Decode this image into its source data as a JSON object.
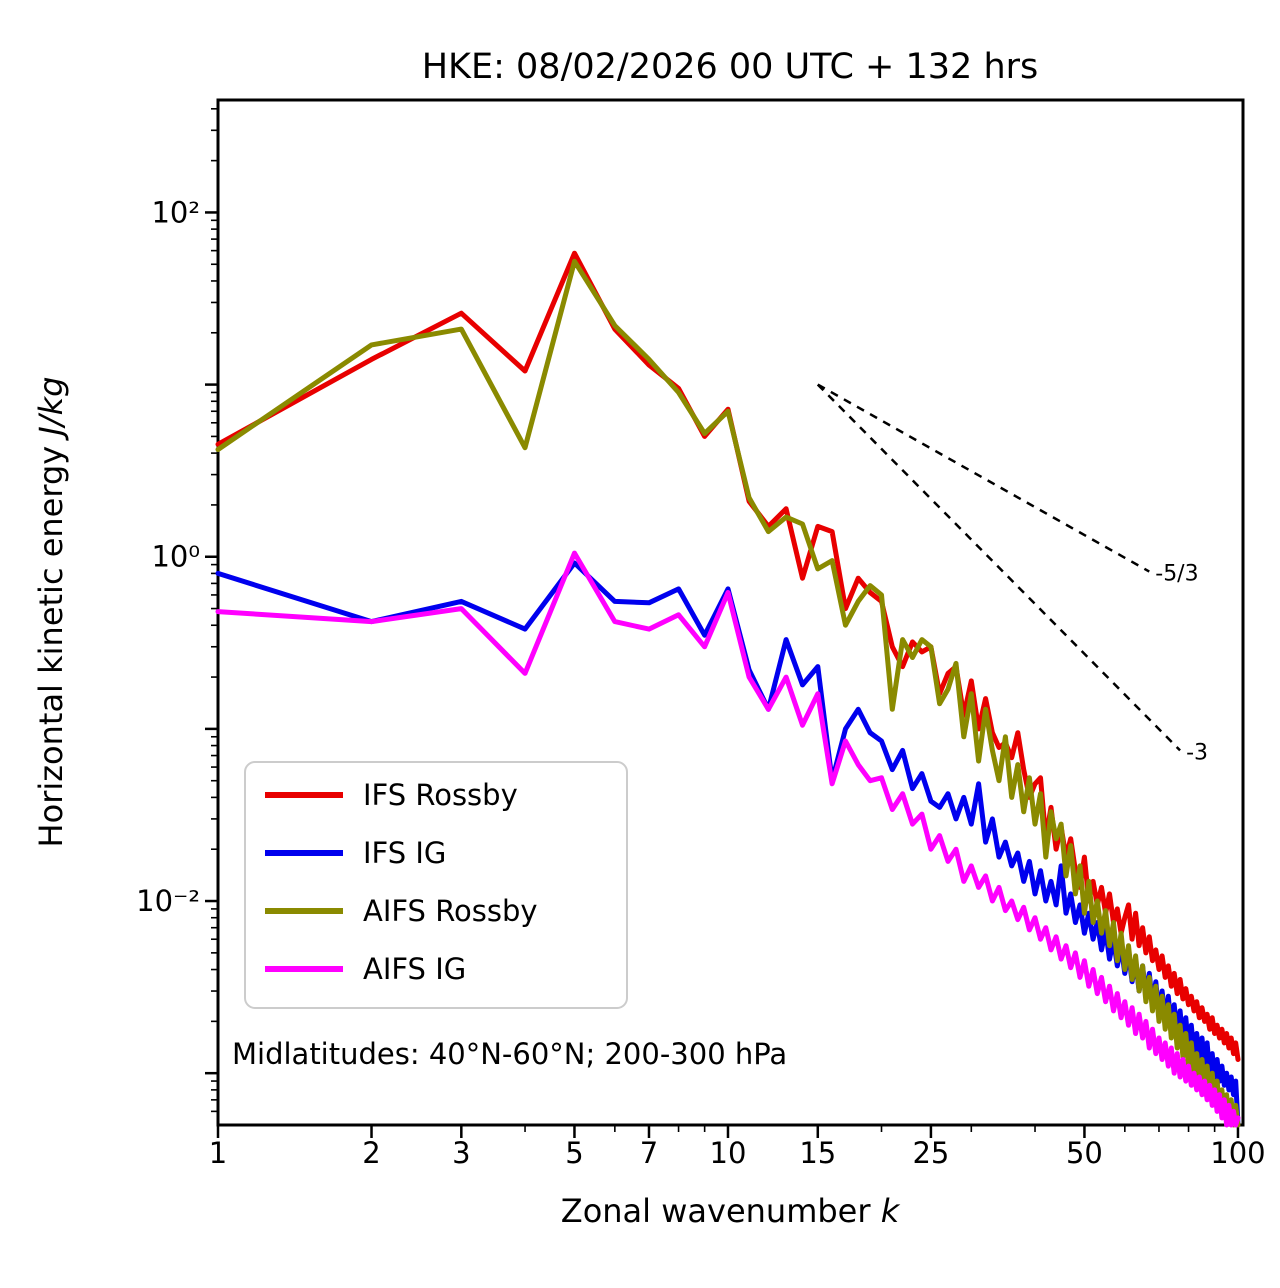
{
  "chart_data": {
    "type": "line",
    "title": "HKE: 08/02/2026 00 UTC + 132 hrs",
    "xlabel_prefix": "Zonal wavenumber ",
    "xlabel_italic": "k",
    "ylabel_prefix": "Horizontal kinetic energy ",
    "ylabel_italic": "J/kg",
    "annotation": "Midlatitudes: 40°N-60°N; 200-300 hPa",
    "x_scale": "log",
    "y_scale": "log",
    "xlim": [
      1,
      102.3
    ],
    "ylim": [
      0.0005,
      450
    ],
    "grid": false,
    "legend_position": "lower left",
    "xtick_values": [
      1,
      2,
      3,
      5,
      7,
      10,
      15,
      25,
      50,
      100
    ],
    "xtick_labels": [
      "1",
      "2",
      "3",
      "5",
      "7",
      "10",
      "15",
      "25",
      "50",
      "100"
    ],
    "ytick_values": [
      0.01,
      1,
      100
    ],
    "ytick_labels": [
      "10⁻²",
      "10⁰",
      "10²"
    ],
    "x": [
      1,
      2,
      3,
      4,
      5,
      6,
      7,
      8,
      9,
      10,
      11,
      12,
      13,
      14,
      15,
      16,
      17,
      18,
      19,
      20,
      21,
      22,
      23,
      24,
      25,
      26,
      27,
      28,
      29,
      30,
      31,
      32,
      33,
      34,
      35,
      36,
      37,
      38,
      39,
      40,
      41,
      42,
      43,
      44,
      45,
      46,
      47,
      48,
      49,
      50,
      51,
      52,
      53,
      54,
      55,
      56,
      57,
      58,
      59,
      60,
      61,
      62,
      63,
      64,
      65,
      66,
      67,
      68,
      69,
      70,
      71,
      72,
      73,
      74,
      75,
      76,
      77,
      78,
      79,
      80,
      81,
      82,
      83,
      84,
      85,
      86,
      87,
      88,
      89,
      90,
      91,
      92,
      93,
      94,
      95,
      96,
      97,
      98,
      99,
      100
    ],
    "series": [
      {
        "name": "IFS Rossby",
        "color": "#e80000",
        "values": [
          4.5,
          14,
          26,
          12,
          58,
          21,
          13,
          9.5,
          5.0,
          7.2,
          2.1,
          1.5,
          1.9,
          0.75,
          1.5,
          1.4,
          0.5,
          0.75,
          0.62,
          0.55,
          0.3,
          0.23,
          0.32,
          0.28,
          0.3,
          0.16,
          0.21,
          0.23,
          0.12,
          0.19,
          0.1,
          0.15,
          0.095,
          0.078,
          0.083,
          0.068,
          0.095,
          0.058,
          0.04,
          0.048,
          0.052,
          0.023,
          0.035,
          0.02,
          0.027,
          0.018,
          0.023,
          0.015,
          0.012,
          0.018,
          0.01,
          0.013,
          0.0095,
          0.012,
          0.0085,
          0.011,
          0.0075,
          0.009,
          0.0065,
          0.008,
          0.0095,
          0.006,
          0.0085,
          0.0055,
          0.007,
          0.005,
          0.0062,
          0.0045,
          0.0052,
          0.004,
          0.0048,
          0.0036,
          0.0042,
          0.0032,
          0.0038,
          0.0029,
          0.0035,
          0.0027,
          0.0031,
          0.0025,
          0.0028,
          0.0023,
          0.0026,
          0.0021,
          0.0024,
          0.002,
          0.0022,
          0.0018,
          0.0021,
          0.0017,
          0.0019,
          0.0016,
          0.0018,
          0.0015,
          0.0017,
          0.0014,
          0.0016,
          0.0013,
          0.0015,
          0.0012
        ]
      },
      {
        "name": "IFS IG",
        "color": "#0000ee",
        "values": [
          0.8,
          0.42,
          0.55,
          0.38,
          0.92,
          0.55,
          0.54,
          0.65,
          0.35,
          0.65,
          0.22,
          0.13,
          0.33,
          0.18,
          0.23,
          0.05,
          0.1,
          0.13,
          0.095,
          0.085,
          0.058,
          0.075,
          0.045,
          0.055,
          0.038,
          0.035,
          0.042,
          0.03,
          0.04,
          0.028,
          0.048,
          0.022,
          0.03,
          0.018,
          0.022,
          0.016,
          0.019,
          0.013,
          0.017,
          0.011,
          0.015,
          0.01,
          0.013,
          0.0095,
          0.016,
          0.0085,
          0.011,
          0.0075,
          0.0095,
          0.0065,
          0.0085,
          0.006,
          0.0075,
          0.0052,
          0.0068,
          0.0046,
          0.006,
          0.0042,
          0.0055,
          0.0038,
          0.005,
          0.0034,
          0.0045,
          0.003,
          0.0042,
          0.0028,
          0.0038,
          0.0025,
          0.0034,
          0.0022,
          0.003,
          0.002,
          0.0028,
          0.0018,
          0.0025,
          0.0017,
          0.0023,
          0.0015,
          0.0021,
          0.0014,
          0.0019,
          0.0013,
          0.0017,
          0.0012,
          0.0016,
          0.0011,
          0.0015,
          0.001,
          0.0013,
          0.00095,
          0.0012,
          0.0009,
          0.0011,
          0.00085,
          0.001,
          0.0008,
          0.00095,
          0.00075,
          0.0009,
          0.0004
        ]
      },
      {
        "name": "AIFS Rossby",
        "color": "#8a8a00",
        "values": [
          4.2,
          17,
          21,
          4.3,
          52,
          22,
          14,
          9.0,
          5.2,
          7.0,
          2.2,
          1.4,
          1.7,
          1.55,
          0.85,
          0.95,
          0.4,
          0.55,
          0.68,
          0.6,
          0.13,
          0.33,
          0.26,
          0.33,
          0.3,
          0.14,
          0.17,
          0.24,
          0.09,
          0.16,
          0.065,
          0.13,
          0.075,
          0.05,
          0.09,
          0.04,
          0.062,
          0.033,
          0.052,
          0.028,
          0.042,
          0.018,
          0.033,
          0.023,
          0.028,
          0.014,
          0.021,
          0.011,
          0.016,
          0.0085,
          0.013,
          0.0075,
          0.01,
          0.0065,
          0.0088,
          0.0055,
          0.0075,
          0.0045,
          0.0065,
          0.004,
          0.0055,
          0.0035,
          0.0048,
          0.003,
          0.0042,
          0.0026,
          0.0036,
          0.0023,
          0.0032,
          0.002,
          0.0028,
          0.0018,
          0.0025,
          0.0016,
          0.0022,
          0.0014,
          0.0019,
          0.00125,
          0.0017,
          0.0011,
          0.0015,
          0.001,
          0.0013,
          0.0009,
          0.0012,
          0.0008,
          0.0011,
          0.00075,
          0.001,
          0.0007,
          0.0009,
          0.00065,
          0.0008,
          0.0006,
          0.00075,
          0.00055,
          0.0007,
          0.0005,
          0.00065,
          0.00045
        ]
      },
      {
        "name": "AIFS IG",
        "color": "#ff00ff",
        "values": [
          0.48,
          0.42,
          0.5,
          0.21,
          1.05,
          0.42,
          0.38,
          0.46,
          0.3,
          0.62,
          0.2,
          0.13,
          0.2,
          0.105,
          0.16,
          0.048,
          0.085,
          0.062,
          0.05,
          0.052,
          0.034,
          0.042,
          0.028,
          0.032,
          0.02,
          0.024,
          0.017,
          0.02,
          0.013,
          0.016,
          0.012,
          0.014,
          0.01,
          0.012,
          0.0088,
          0.01,
          0.0078,
          0.0092,
          0.0068,
          0.008,
          0.006,
          0.007,
          0.0052,
          0.0062,
          0.0046,
          0.0055,
          0.0041,
          0.005,
          0.0036,
          0.0045,
          0.0032,
          0.004,
          0.0029,
          0.0036,
          0.0026,
          0.0032,
          0.0023,
          0.0029,
          0.0021,
          0.0026,
          0.0019,
          0.0024,
          0.0017,
          0.0022,
          0.0016,
          0.002,
          0.0014,
          0.0018,
          0.0013,
          0.0016,
          0.0012,
          0.0015,
          0.0011,
          0.0014,
          0.001,
          0.0013,
          0.00095,
          0.0012,
          0.0009,
          0.0011,
          0.00085,
          0.001,
          0.0008,
          0.00095,
          0.00075,
          0.0009,
          0.0007,
          0.00085,
          0.00065,
          0.0008,
          0.0006,
          0.00075,
          0.00055,
          0.0007,
          0.0005,
          0.00065,
          0.00048,
          0.0006,
          0.00045,
          0.00055
        ]
      }
    ],
    "reference_lines": [
      {
        "label": "-5/3",
        "x": [
          15,
          67
        ],
        "y": [
          10,
          0.82
        ]
      },
      {
        "label": "-3",
        "x": [
          15,
          77
        ],
        "y": [
          10,
          0.075
        ]
      }
    ]
  }
}
